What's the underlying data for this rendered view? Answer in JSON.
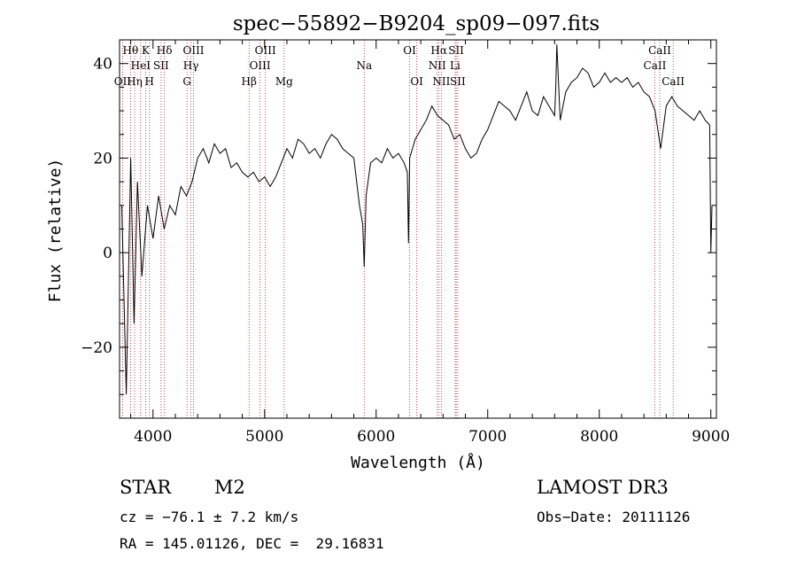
{
  "chart_data": {
    "type": "line",
    "title": "spec−55892−B9204_sp09−097.fits",
    "xlabel": "Wavelength (Å)",
    "ylabel": "Flux (relative)",
    "xlim": [
      3700,
      9050
    ],
    "ylim": [
      -35,
      45
    ],
    "x_ticks": [
      4000,
      5000,
      6000,
      7000,
      8000,
      9000
    ],
    "x_tick_labels": [
      "4000",
      "5000",
      "6000",
      "7000",
      "8000",
      "9000"
    ],
    "y_ticks": [
      -20,
      0,
      20,
      40
    ],
    "y_tick_labels": [
      "−20",
      "0",
      "20",
      "40"
    ],
    "line_color": "#000000",
    "marker_color": "#b22222",
    "series": [
      {
        "name": "flux",
        "x": [
          3720,
          3760,
          3800,
          3830,
          3860,
          3900,
          3950,
          4000,
          4050,
          4100,
          4150,
          4200,
          4250,
          4300,
          4350,
          4400,
          4450,
          4500,
          4550,
          4600,
          4650,
          4700,
          4750,
          4800,
          4850,
          4900,
          4950,
          5000,
          5050,
          5100,
          5150,
          5200,
          5250,
          5300,
          5350,
          5400,
          5450,
          5500,
          5550,
          5600,
          5650,
          5700,
          5750,
          5800,
          5850,
          5880,
          5893,
          5910,
          5950,
          6000,
          6050,
          6100,
          6150,
          6200,
          6250,
          6280,
          6290,
          6300,
          6350,
          6400,
          6450,
          6500,
          6550,
          6600,
          6650,
          6700,
          6750,
          6800,
          6850,
          6900,
          6950,
          7000,
          7050,
          7100,
          7150,
          7200,
          7250,
          7300,
          7350,
          7400,
          7450,
          7500,
          7550,
          7600,
          7610,
          7620,
          7650,
          7700,
          7750,
          7800,
          7850,
          7900,
          7950,
          8000,
          8050,
          8100,
          8150,
          8200,
          8250,
          8300,
          8350,
          8400,
          8450,
          8500,
          8550,
          8600,
          8650,
          8700,
          8750,
          8800,
          8850,
          8900,
          8950,
          8990,
          9000,
          9010
        ],
        "y": [
          10,
          -30,
          20,
          -15,
          15,
          -5,
          10,
          3,
          12,
          5,
          10,
          8,
          14,
          12,
          15,
          20,
          22,
          19,
          23,
          21,
          22,
          18,
          19,
          17,
          16,
          17,
          15,
          16,
          14,
          16,
          19,
          22,
          20,
          24,
          23,
          21,
          22,
          20,
          23,
          25,
          24,
          22,
          21,
          20,
          10,
          6,
          -3,
          12,
          19,
          20,
          19,
          22,
          20,
          21,
          19,
          17,
          2,
          20,
          24,
          26,
          28,
          31,
          29,
          28,
          27,
          24,
          25,
          22,
          20,
          21,
          24,
          26,
          29,
          32,
          31,
          30,
          28,
          31,
          34,
          30,
          29,
          33,
          31,
          29,
          35,
          44,
          28,
          34,
          36,
          37,
          39,
          38,
          35,
          36,
          38,
          36,
          37,
          36,
          37,
          35,
          36,
          34,
          33,
          30,
          22,
          31,
          33,
          31,
          30,
          29,
          28,
          30,
          28,
          27,
          0,
          10
        ]
      }
    ],
    "line_markers": [
      {
        "name": "O II",
        "label": "OII",
        "x": 3727,
        "row": 3
      },
      {
        "name": "H-theta",
        "label": "Hθ",
        "x": 3798,
        "row": 1
      },
      {
        "name": "H-eta",
        "label": "Hη",
        "x": 3835,
        "row": 3
      },
      {
        "name": "He I",
        "label": "HeI",
        "x": 3889,
        "row": 2
      },
      {
        "name": "Ca K",
        "label": "K",
        "x": 3934,
        "row": 1
      },
      {
        "name": "Ca H",
        "label": "H",
        "x": 3968,
        "row": 3
      },
      {
        "name": "S II a",
        "label": "SII",
        "x": 4072,
        "row": 2
      },
      {
        "name": "H-delta",
        "label": "Hδ",
        "x": 4102,
        "row": 1
      },
      {
        "name": "O III a",
        "label": "OIII",
        "x": 4363,
        "row": 1
      },
      {
        "name": "H-gamma",
        "label": "Hγ",
        "x": 4340,
        "row": 2
      },
      {
        "name": "G band",
        "label": "G",
        "x": 4305,
        "row": 3
      },
      {
        "name": "H-beta",
        "label": "Hβ",
        "x": 4861,
        "row": 3
      },
      {
        "name": "O III b",
        "label": "OIII",
        "x": 4959,
        "row": 2
      },
      {
        "name": "O III c",
        "label": "OIII",
        "x": 5007,
        "row": 1
      },
      {
        "name": "Mg",
        "label": "Mg",
        "x": 5175,
        "row": 3
      },
      {
        "name": "Na",
        "label": "Na",
        "x": 5893,
        "row": 2
      },
      {
        "name": "O I a",
        "label": "OI",
        "x": 6300,
        "row": 1
      },
      {
        "name": "O I b",
        "label": "OI",
        "x": 6364,
        "row": 3
      },
      {
        "name": "N II a",
        "label": "NII",
        "x": 6548,
        "row": 2
      },
      {
        "name": "H-alpha",
        "label": "Hα",
        "x": 6563,
        "row": 1
      },
      {
        "name": "N II b",
        "label": "NII",
        "x": 6584,
        "row": 3
      },
      {
        "name": "S II b",
        "label": "SII",
        "x": 6717,
        "row": 1
      },
      {
        "name": "Li",
        "label": "Li",
        "x": 6708,
        "row": 2
      },
      {
        "name": "S II c",
        "label": "SII",
        "x": 6731,
        "row": 3
      },
      {
        "name": "Ca II a",
        "label": "CaII",
        "x": 8498,
        "row": 2
      },
      {
        "name": "Ca II b",
        "label": "CaII",
        "x": 8542,
        "row": 1
      },
      {
        "name": "Ca II c",
        "label": "CaII",
        "x": 8662,
        "row": 3
      }
    ]
  },
  "info": {
    "object_class": "STAR",
    "subclass": "M2",
    "survey": "LAMOST DR3",
    "redshift": "cz = −76.1 ± 7.2 km/s",
    "obs_date": "Obs−Date: 20111126",
    "coords": "RA = 145.01126, DEC =  29.16831"
  }
}
